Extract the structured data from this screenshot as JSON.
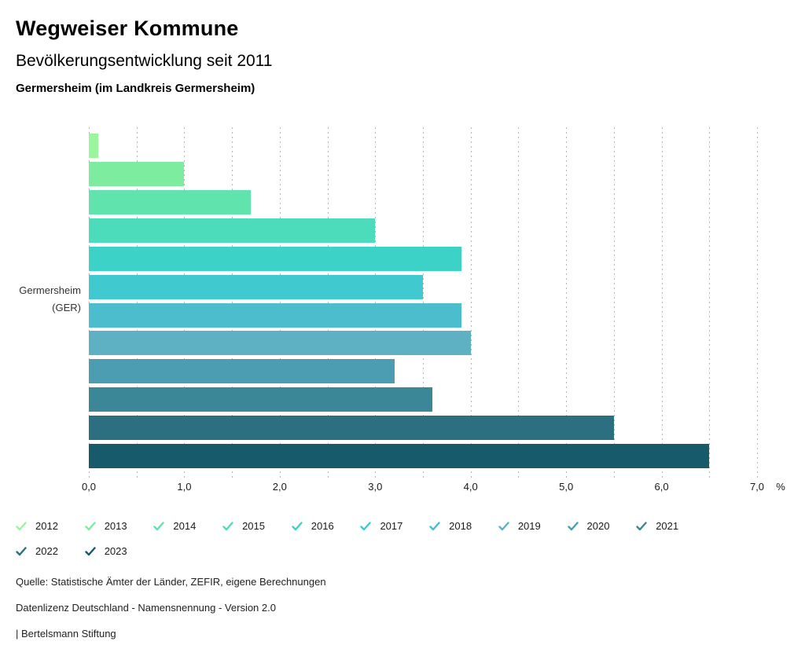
{
  "header": {
    "title": "Wegweiser Kommune",
    "subtitle": "Bevölkerungsentwicklung seit 2011",
    "location": "Germersheim (im Landkreis Germersheim)"
  },
  "chart_data": {
    "type": "bar",
    "orientation": "horizontal",
    "title": "Bevölkerungsentwicklung seit 2011",
    "group_label": [
      "Germersheim",
      "(GER)"
    ],
    "categories": [
      "2012",
      "2013",
      "2014",
      "2015",
      "2016",
      "2017",
      "2018",
      "2019",
      "2020",
      "2021",
      "2022",
      "2023"
    ],
    "values": [
      0.1,
      1.0,
      1.7,
      3.0,
      3.9,
      3.5,
      3.9,
      4.0,
      3.2,
      3.6,
      5.5,
      6.5
    ],
    "colors": [
      "#9BF59D",
      "#7DEC9E",
      "#60E3AC",
      "#4CDBBB",
      "#3DD2C7",
      "#40C9CF",
      "#4BBDCC",
      "#5EB1C2",
      "#4C9DB1",
      "#3C8797",
      "#2B6F80",
      "#175A6B"
    ],
    "xlim": [
      0,
      7
    ],
    "x_ticks": [
      "0,0",
      "1,0",
      "2,0",
      "3,0",
      "4,0",
      "5,0",
      "6,0",
      "7,0"
    ],
    "x_unit": "%",
    "gridline_step": 0.5,
    "grid": true,
    "gridline_color": "#b5b5b5",
    "legend_position": "bottom",
    "legend_icon": "check"
  },
  "footer": {
    "source": "Quelle: Statistische Ämter der Länder, ZEFIR, eigene Berechnungen",
    "license": "Datenlizenz Deutschland - Namensnennung - Version 2.0",
    "attribution": "| Bertelsmann Stiftung"
  }
}
